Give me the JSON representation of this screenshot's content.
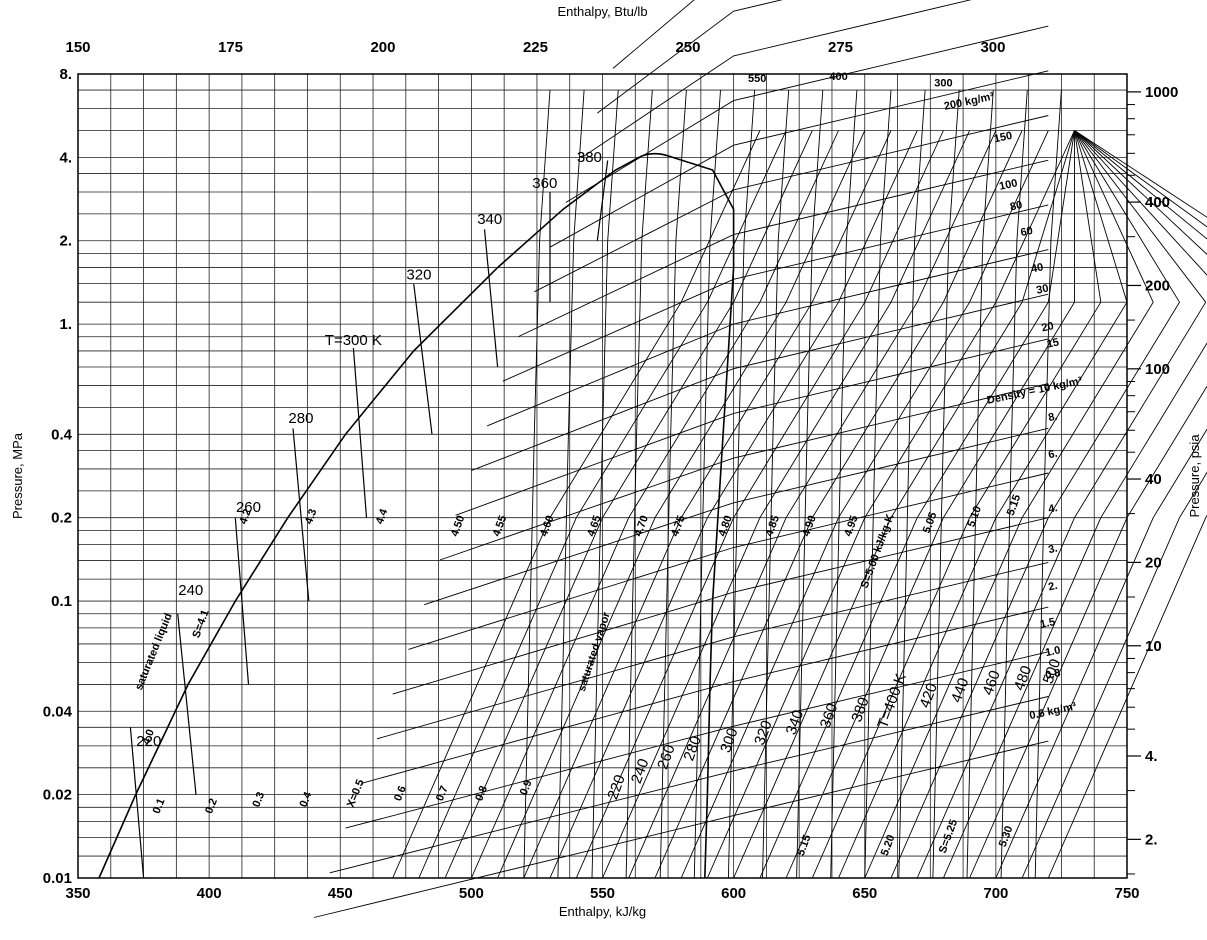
{
  "chart_data": {
    "type": "line",
    "title": "",
    "x_bottom": {
      "label": "Enthalpy, kJ/kg",
      "range": [
        350,
        750
      ],
      "ticks": [
        350,
        400,
        450,
        500,
        550,
        600,
        650,
        700,
        750
      ]
    },
    "x_top": {
      "label": "Enthalpy, Btu/lb",
      "range": [
        150,
        320
      ],
      "ticks": [
        150,
        175,
        200,
        225,
        250,
        275,
        300
      ]
    },
    "y_left": {
      "label": "Pressure, MPa",
      "scale": "log",
      "range": [
        0.01,
        8
      ],
      "ticks": [
        "0.01",
        "0.02",
        "0.04",
        "0.1",
        "0.2",
        "0.4",
        "1.",
        "2.",
        "4.",
        "8."
      ]
    },
    "y_right": {
      "label": "Pressure, psia",
      "scale": "log",
      "ticks": [
        "2.",
        "4.",
        "10",
        "20",
        "40",
        "100",
        "200",
        "400",
        "1000"
      ]
    },
    "grid": true,
    "saturation_dome": {
      "liquid": [
        [
          358,
          0.01
        ],
        [
          372,
          0.02
        ],
        [
          392,
          0.05
        ],
        [
          410,
          0.1
        ],
        [
          430,
          0.2
        ],
        [
          452,
          0.4
        ],
        [
          478,
          0.8
        ],
        [
          510,
          1.6
        ],
        [
          535,
          2.6
        ],
        [
          555,
          3.6
        ],
        [
          565,
          4.05
        ]
      ],
      "vapor": [
        [
          575,
          4.05
        ],
        [
          592,
          3.6
        ],
        [
          600,
          2.6
        ],
        [
          600,
          1.6
        ],
        [
          598,
          0.8
        ],
        [
          596,
          0.4
        ],
        [
          594,
          0.2
        ],
        [
          592,
          0.1
        ],
        [
          591,
          0.05
        ],
        [
          590,
          0.02
        ],
        [
          589,
          0.01
        ]
      ],
      "labels": {
        "liquid": "saturated liquid",
        "vapor": "saturated vapor"
      }
    },
    "isotherms": {
      "series": [
        {
          "name": "220",
          "points": [
            [
              375,
              0.01
            ],
            [
              370,
              0.035
            ]
          ]
        },
        {
          "name": "240",
          "points": [
            [
              395,
              0.02
            ],
            [
              388,
              0.09
            ]
          ]
        },
        {
          "name": "260",
          "points": [
            [
              415,
              0.05
            ],
            [
              410,
              0.2
            ]
          ]
        },
        {
          "name": "280",
          "points": [
            [
              438,
              0.1
            ],
            [
              432,
              0.42
            ]
          ]
        },
        {
          "name": "T=300 K",
          "points": [
            [
              460,
              0.2
            ],
            [
              455,
              0.82
            ]
          ]
        },
        {
          "name": "320",
          "points": [
            [
              485,
              0.4
            ],
            [
              478,
              1.4
            ]
          ]
        },
        {
          "name": "340",
          "points": [
            [
              510,
              0.7
            ],
            [
              505,
              2.2
            ]
          ]
        },
        {
          "name": "360",
          "points": [
            [
              530,
              1.2
            ],
            [
              530,
              3.0
            ]
          ]
        },
        {
          "name": "380",
          "points": [
            [
              548,
              2.0
            ],
            [
              552,
              3.9
            ]
          ]
        }
      ],
      "vapor_labels": [
        "220",
        "240",
        "260",
        "280",
        "300",
        "320",
        "340",
        "360",
        "380",
        "T=400 K",
        "420",
        "440",
        "460",
        "480",
        "500"
      ],
      "supercritical_labels": [
        "550",
        "400",
        "300"
      ]
    },
    "isentropes": {
      "labels": [
        "S=4.1",
        "4.2",
        "4.3",
        "4.4",
        "4.50",
        "4.55",
        "4.60",
        "4.65",
        "4.70",
        "4.75",
        "4.80",
        "4.85",
        "4.90",
        "4.95",
        "S=5.00 kJ/kg-K",
        "5.05",
        "5.10",
        "5.15",
        "5.15",
        "5.20",
        "S=5.25",
        "5.30",
        "4.0"
      ]
    },
    "quality_lines": {
      "labels": [
        "0.1",
        "0.2",
        "0.3",
        "0.4",
        "X=0.5",
        "0.6",
        "0.7",
        "0.8",
        "0.9"
      ]
    },
    "isochores": {
      "labels": [
        "200 kg/m³",
        "150",
        "100",
        "80",
        "60",
        "40",
        "30",
        "20",
        "15",
        "Density = 10 kg/m³",
        "8.",
        "6.",
        "4.",
        "3.",
        "2.",
        "1.5",
        "1.0",
        "0.8",
        "0.6 kg/m³"
      ]
    }
  }
}
